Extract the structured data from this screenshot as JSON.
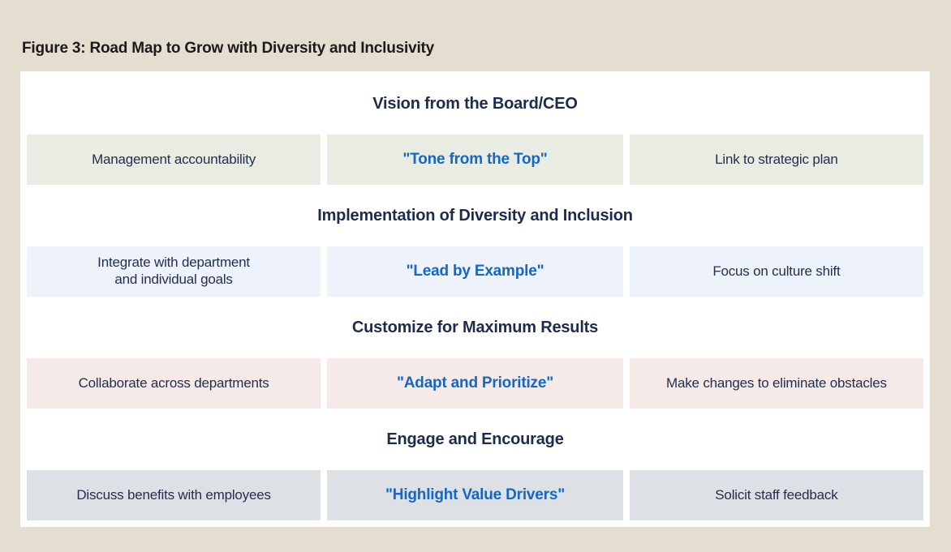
{
  "figure": {
    "title": "Figure 3: Road Map to Grow with Diversity and Inclusivity"
  },
  "colors": {
    "page_background": "#e3decf",
    "panel_background": "#ffffff",
    "title_text": "#1c1b1a",
    "heading_text": "#1d2b4f",
    "box_text": "#22304f",
    "accent_blue": "#1467c6",
    "row_tints": [
      "#e9ece3",
      "#eef2fb",
      "#f5eae7",
      "#dde1e5"
    ]
  },
  "sections": [
    {
      "heading": "Vision from the Board/CEO",
      "left": "Management accountability",
      "center": "\"Tone from the Top\"",
      "right": "Link to strategic plan"
    },
    {
      "heading": "Implementation of Diversity and Inclusion",
      "left": "Integrate with department\nand individual goals",
      "center": "\"Lead by Example\"",
      "right": "Focus on culture shift"
    },
    {
      "heading": "Customize for Maximum Results",
      "left": "Collaborate across departments",
      "center": "\"Adapt and Prioritize\"",
      "right": "Make changes to eliminate obstacles"
    },
    {
      "heading": "Engage and Encourage",
      "left": "Discuss benefits with employees",
      "center": "\"Highlight Value Drivers\"",
      "right": "Solicit staff feedback"
    }
  ]
}
